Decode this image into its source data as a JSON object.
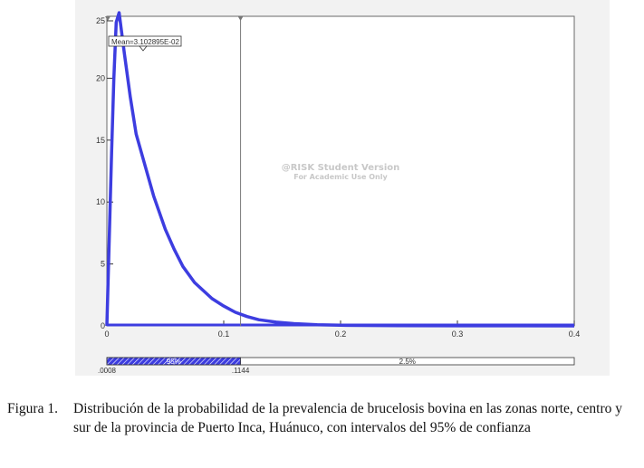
{
  "chart_data": {
    "type": "line",
    "x": [
      0.0,
      0.002,
      0.004,
      0.006,
      0.008,
      0.0105,
      0.015,
      0.02,
      0.025,
      0.031,
      0.04,
      0.05,
      0.0575,
      0.065,
      0.075,
      0.09,
      0.1,
      0.11,
      0.12,
      0.13,
      0.145,
      0.16,
      0.18,
      0.2,
      0.25,
      0.3,
      0.35,
      0.4
    ],
    "y": [
      0.0,
      7.0,
      14.0,
      20.0,
      24.5,
      26.0,
      22.0,
      18.5,
      15.5,
      13.5,
      10.5,
      7.8,
      6.2,
      4.8,
      3.5,
      2.2,
      1.6,
      1.1,
      0.75,
      0.5,
      0.3,
      0.18,
      0.09,
      0.05,
      0.02,
      0.01,
      0.005,
      0.0
    ],
    "xlim": [
      0,
      0.4
    ],
    "ylim": [
      0,
      25
    ],
    "x_ticks": [
      "0",
      "0.1",
      "0.2",
      "0.3",
      "0.4"
    ],
    "y_ticks": [
      "0",
      "5",
      "10",
      "15",
      "20",
      "25"
    ],
    "line_color": "#3d3de0",
    "mean_value": 0.0310289,
    "mean_label": "Mean=3.102895E-02",
    "watermark": [
      "@RISK Student Version",
      "For Academic Use Only"
    ],
    "interval": {
      "lower_value": 0.0008,
      "upper_value": 0.1144,
      "lower_label": ".0008",
      "upper_label": ".1144",
      "inner_pct_label": "95%",
      "upper_pct_label": "2.5%"
    }
  },
  "caption": {
    "label": "Figura 1.",
    "text": "Distribución de la probabilidad de la prevalencia de brucelosis bovina en las zonas norte, centro y sur de la provincia de Puerto Inca, Huánuco, con intervalos del 95% de confianza"
  }
}
